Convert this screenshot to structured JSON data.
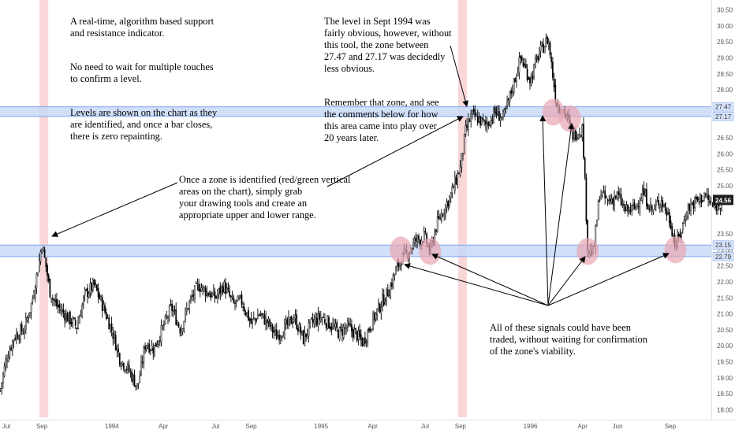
{
  "chart_data": {
    "type": "candlestick",
    "title": "",
    "x": [
      "1993-06-20",
      "1993-07-01",
      "1993-07-15",
      "1993-08-01",
      "1993-08-15",
      "1993-08-25",
      "1993-09-01",
      "1993-09-08",
      "1993-09-15",
      "1993-09-25",
      "1993-10-15",
      "1993-11-01",
      "1993-11-15",
      "1993-12-01",
      "1993-12-15",
      "1994-01-01",
      "1994-01-15",
      "1994-02-01",
      "1994-02-15",
      "1994-03-01",
      "1994-03-15",
      "1994-04-01",
      "1994-04-15",
      "1994-05-01",
      "1994-05-15",
      "1994-06-01",
      "1994-06-15",
      "1994-07-01",
      "1994-07-15",
      "1994-08-01",
      "1994-08-15",
      "1994-09-01",
      "1994-09-15",
      "1994-10-01",
      "1994-10-15",
      "1994-11-01",
      "1994-11-15",
      "1994-12-01",
      "1994-12-15",
      "1995-01-01",
      "1995-01-15",
      "1995-02-01",
      "1995-02-15",
      "1995-03-01",
      "1995-03-15",
      "1995-04-01",
      "1995-04-15",
      "1995-05-01",
      "1995-05-10",
      "1995-05-20",
      "1995-06-01",
      "1995-06-15",
      "1995-07-01",
      "1995-07-10",
      "1995-07-20",
      "1995-08-01",
      "1995-08-15",
      "1995-09-01",
      "1995-09-10",
      "1995-09-20",
      "1995-10-01",
      "1995-10-15",
      "1995-11-01",
      "1995-11-15",
      "1995-12-01",
      "1995-12-15",
      "1996-01-01",
      "1996-01-15",
      "1996-02-01",
      "1996-02-15",
      "1996-03-01",
      "1996-03-15",
      "1996-04-01",
      "1996-04-10",
      "1996-04-20",
      "1996-05-01",
      "1996-05-15",
      "1996-06-01",
      "1996-06-15",
      "1996-07-01",
      "1996-07-15",
      "1996-08-01",
      "1996-08-15",
      "1996-09-01",
      "1996-09-10",
      "1996-09-20",
      "1996-10-01",
      "1996-10-15",
      "1996-11-01",
      "1996-11-15",
      "1996-12-01"
    ],
    "values": [
      18.6,
      19.6,
      20.3,
      20.5,
      21.4,
      22.4,
      23.2,
      22.5,
      21.7,
      21.3,
      20.9,
      20.6,
      21.6,
      21.9,
      21.3,
      20.5,
      19.6,
      19.2,
      18.7,
      20.1,
      19.9,
      20.6,
      21.2,
      20.5,
      21.3,
      21.9,
      21.7,
      21.5,
      21.9,
      21.3,
      21.4,
      20.7,
      21.0,
      20.7,
      20.3,
      20.6,
      20.9,
      20.2,
      20.7,
      20.9,
      20.7,
      20.4,
      20.6,
      20.4,
      20.1,
      20.8,
      21.3,
      21.8,
      22.3,
      22.7,
      22.9,
      23.3,
      23.4,
      22.9,
      23.7,
      24.2,
      24.7,
      25.6,
      26.7,
      27.2,
      27.1,
      26.9,
      27.3,
      27.1,
      28.1,
      29.0,
      28.3,
      29.1,
      29.6,
      27.6,
      27.3,
      26.6,
      26.8,
      23.0,
      22.9,
      24.8,
      24.5,
      24.7,
      24.2,
      24.3,
      24.8,
      24.2,
      24.6,
      23.9,
      23.1,
      23.6,
      24.3,
      24.5,
      24.7,
      24.3,
      24.56
    ],
    "ylim": [
      17.95,
      30.6
    ],
    "y_ticks": [
      "30.50",
      "30.00",
      "29.50",
      "29.00",
      "28.50",
      "28.00",
      "27.50",
      "26.50",
      "26.00",
      "25.50",
      "25.00",
      "24.50",
      "23.50",
      "23.00",
      "22.50",
      "22.00",
      "21.50",
      "21.00",
      "20.50",
      "20.00",
      "19.50",
      "19.00",
      "18.50",
      "18.00"
    ],
    "x_ticks": [
      "Jul",
      "Sep",
      "1994",
      "Apr",
      "Jul",
      "Sep",
      "1995",
      "Apr",
      "Jul",
      "Sep",
      "1996",
      "Apr",
      "Jun",
      "Sep"
    ],
    "x_tick_dates": [
      "1993-07-01",
      "1993-09-01",
      "1994-01-01",
      "1994-04-01",
      "1994-07-01",
      "1994-09-01",
      "1995-01-01",
      "1995-04-01",
      "1995-07-01",
      "1995-09-01",
      "1996-01-01",
      "1996-04-01",
      "1996-06-01",
      "1996-09-01"
    ],
    "zones": [
      {
        "upper": 27.47,
        "lower": 27.17,
        "upper_label": "27.47",
        "lower_label": "27.17"
      },
      {
        "upper": 23.15,
        "lower": 22.79,
        "upper_label": "23.15",
        "lower_label": "22.79"
      }
    ],
    "signal_bands": [
      {
        "from": "1993-09-01",
        "to": "1993-09-08"
      },
      {
        "from": "1995-09-01",
        "to": "1995-09-08"
      }
    ],
    "signal_points": [
      {
        "x": "1995-05-20",
        "y": 23.0
      },
      {
        "x": "1995-07-10",
        "y": 22.95
      },
      {
        "x": "1996-02-10",
        "y": 27.3
      },
      {
        "x": "1996-03-10",
        "y": 27.1
      },
      {
        "x": "1996-04-10",
        "y": 22.95
      },
      {
        "x": "1996-09-10",
        "y": 23.0
      }
    ],
    "last_price": "24.56",
    "colors": {
      "zone_fill": "#c9d9f7",
      "zone_line": "#7ea6ec",
      "band": "#f9d7d9",
      "circle": "#e9a7b3",
      "last_price_tag": "#1e1e1e",
      "candles": "#000000"
    }
  },
  "annotations": {
    "top_left": {
      "p1": "A real-time, algorithm based support\nand resistance indicator.",
      "p2": "No need to wait for multiple touches\nto confirm a level.",
      "p3": "Levels are shown on the chart as they\nare identified, and once a bar closes,\nthere is zero repainting."
    },
    "top_middle": {
      "p1": "The level in Sept 1994 was\nfairly obvious, however, without\nthis tool, the zone between\n27.47 and 27.17 was decidedly\nless obvious.",
      "p2": "Remember that zone, and see\nthe comments below for how\nthis area came into play over\n20 years later."
    },
    "middle": "Once a zone is identified (red/green vertical\nareas on the chart), simply grab\nyour drawing tools and create an\nappropriate upper and lower range.",
    "bottom_right": "All of these signals could have been\ntraded, without waiting for confirmation\nof the zone's viability."
  }
}
